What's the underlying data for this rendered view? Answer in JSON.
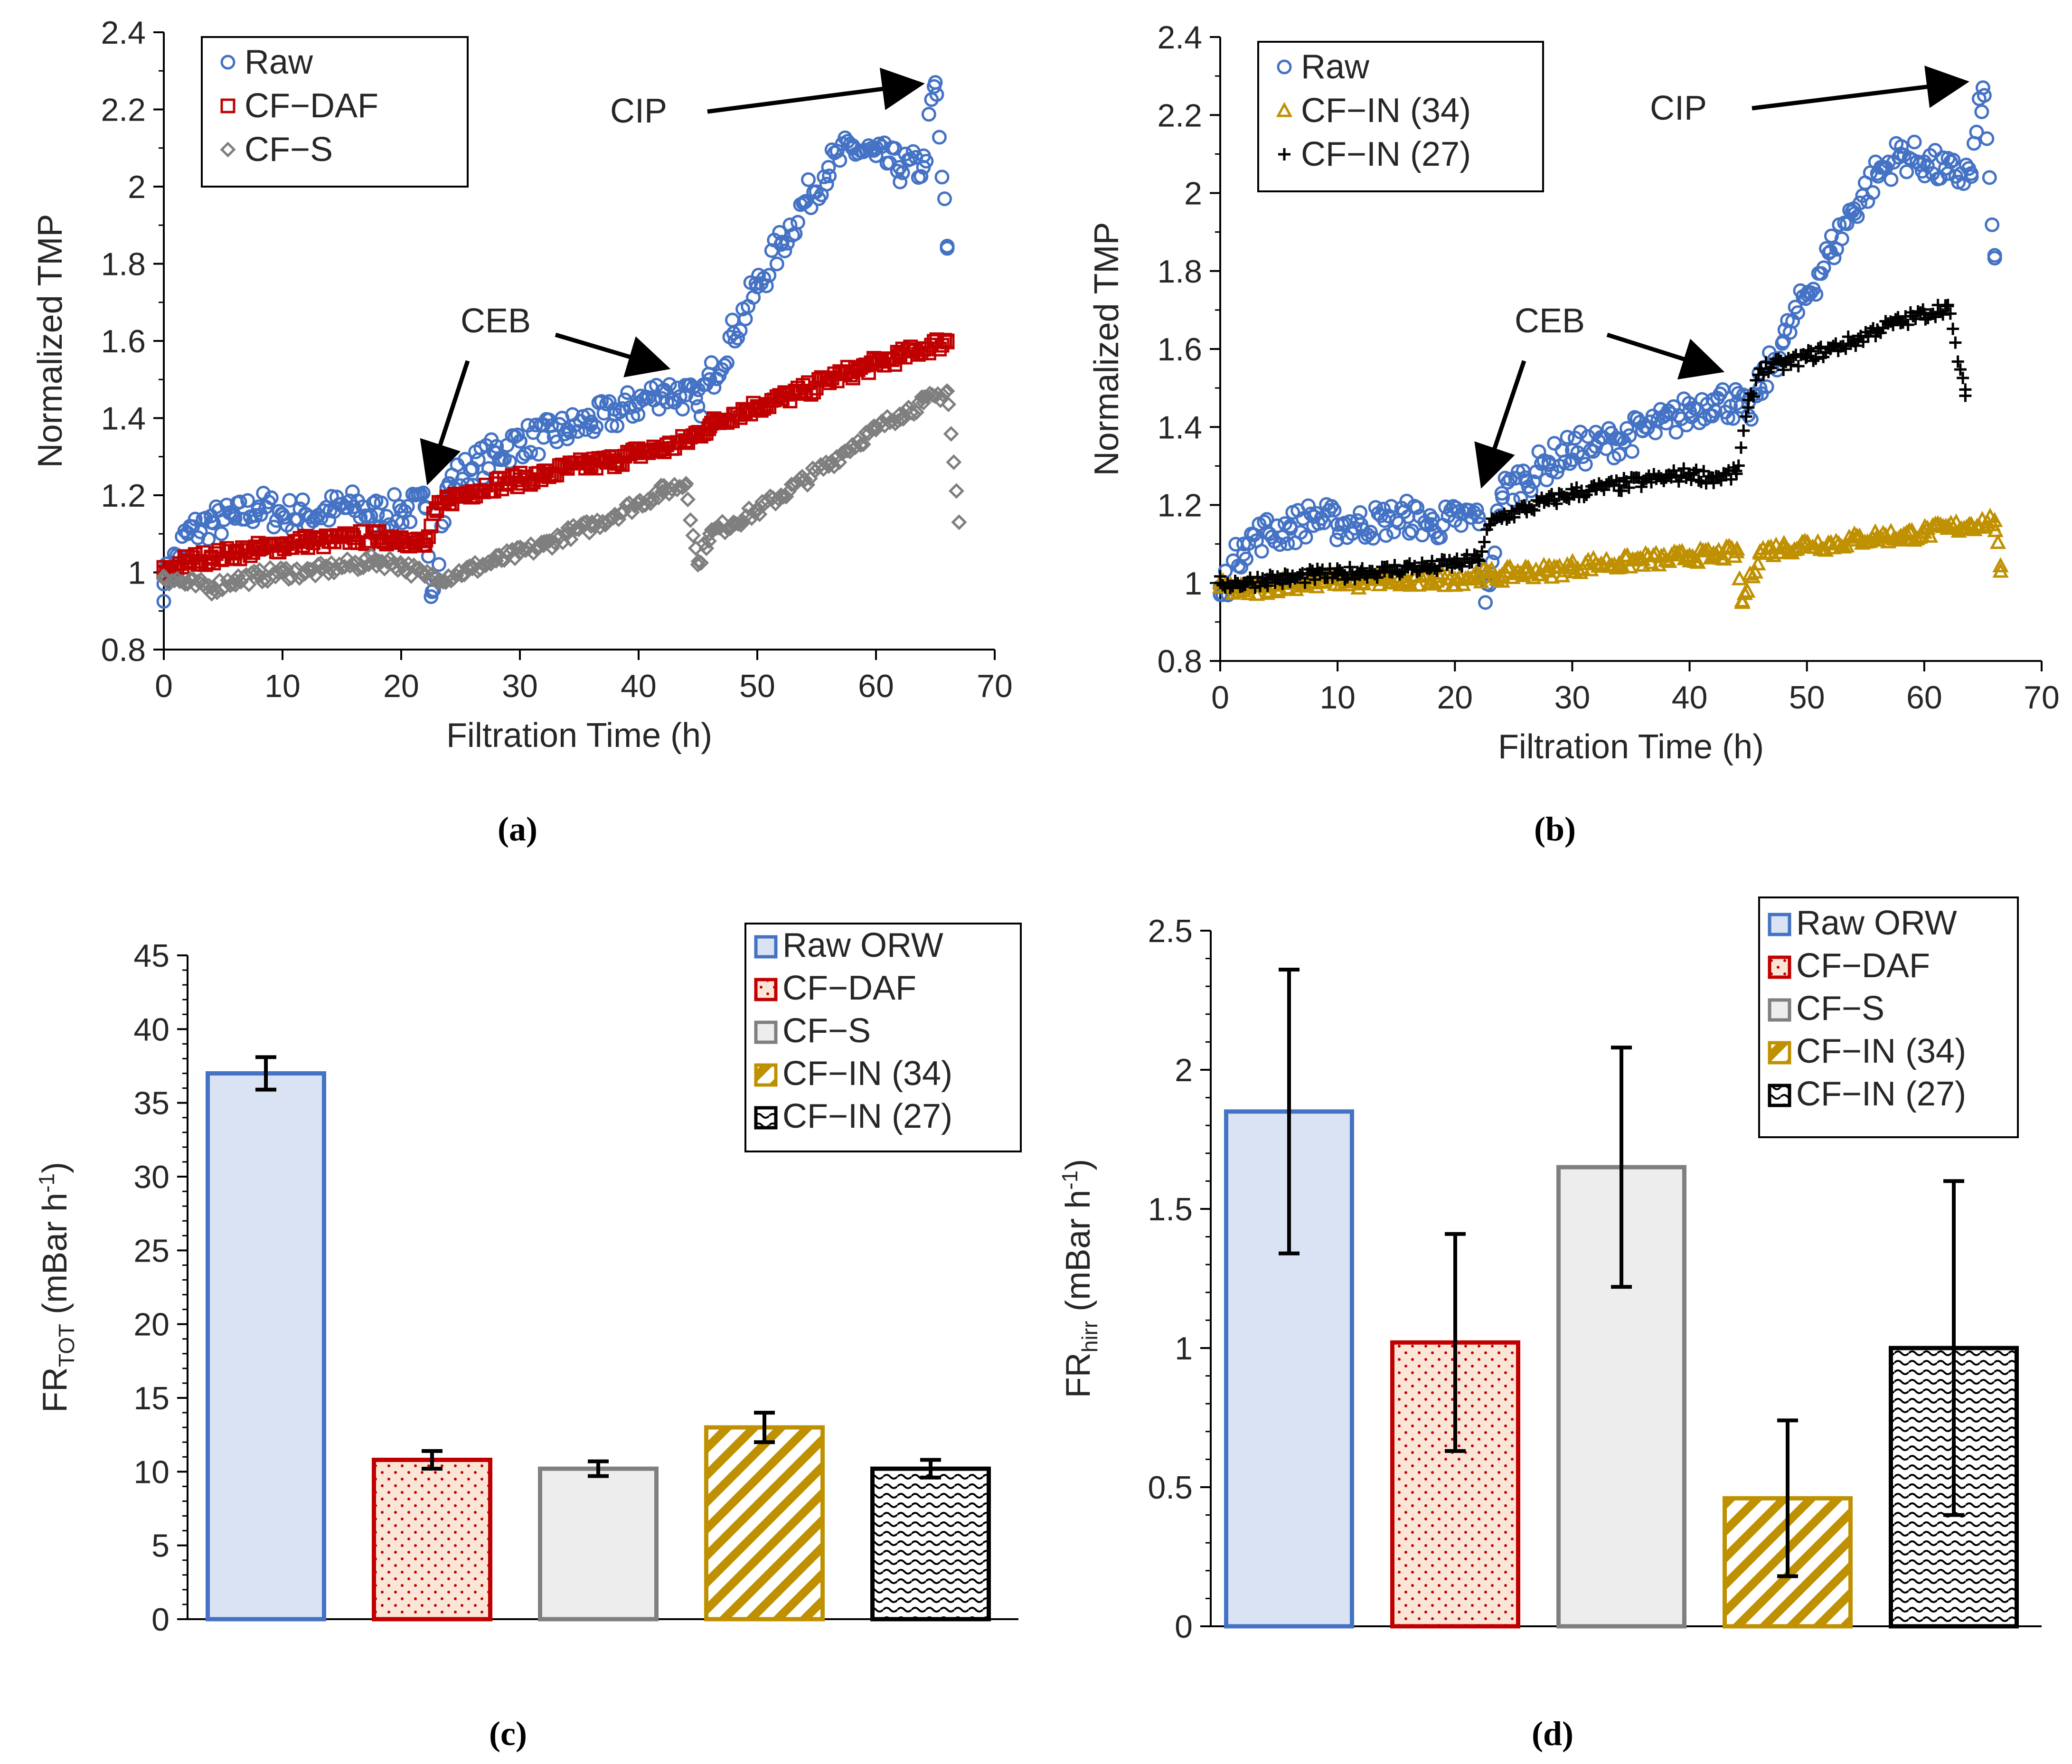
{
  "chart_data": [
    {
      "id": "a",
      "type": "scatter",
      "panel_label": "(a)",
      "xlabel": "Filtration Time (h)",
      "ylabel": "Normalized TMP",
      "xlim": [
        0,
        70
      ],
      "ylim": [
        0.8,
        2.4
      ],
      "xticks": [
        0,
        10,
        20,
        30,
        40,
        50,
        60,
        70
      ],
      "yticks": [
        0.8,
        1,
        1.2,
        1.4,
        1.6,
        1.8,
        2,
        2.2,
        2.4
      ],
      "ytick_labels": [
        "0.8",
        "1",
        "1.2",
        "1.4",
        "1.6",
        "1.8",
        "2",
        "2.2",
        "2.4"
      ],
      "legend_position": "top-left",
      "series": [
        {
          "name": "Raw",
          "marker": "circle",
          "color": "#4472C4",
          "x": [
            0,
            2,
            4,
            6,
            8,
            10,
            12,
            14,
            16,
            18,
            20,
            22,
            22.6,
            24,
            26,
            28,
            30,
            32,
            34,
            36,
            38,
            40,
            42,
            44,
            45,
            46,
            48,
            50,
            52,
            54,
            56,
            58,
            60,
            62,
            64,
            65,
            66
          ],
          "y": [
            0.97,
            1.1,
            1.13,
            1.14,
            1.17,
            1.15,
            1.15,
            1.16,
            1.17,
            1.15,
            1.16,
            1.17,
            0.95,
            1.23,
            1.27,
            1.31,
            1.34,
            1.35,
            1.37,
            1.39,
            1.41,
            1.44,
            1.47,
            1.46,
            1.43,
            1.5,
            1.62,
            1.74,
            1.85,
            1.96,
            2.05,
            2.1,
            2.08,
            2.05,
            2.05,
            2.27,
            1.84
          ]
        },
        {
          "name": "CF−DAF",
          "marker": "square",
          "color": "#C00000",
          "x": [
            0,
            2,
            4,
            6,
            8,
            10,
            12,
            14,
            16,
            18,
            20,
            22,
            23,
            24,
            26,
            28,
            30,
            32,
            34,
            36,
            38,
            40,
            42,
            44,
            45,
            46,
            48,
            50,
            52,
            54,
            56,
            58,
            60,
            62,
            64,
            66
          ],
          "y": [
            1.0,
            1.03,
            1.04,
            1.05,
            1.06,
            1.07,
            1.08,
            1.08,
            1.09,
            1.09,
            1.09,
            1.07,
            1.16,
            1.19,
            1.21,
            1.23,
            1.24,
            1.25,
            1.27,
            1.28,
            1.29,
            1.31,
            1.32,
            1.34,
            1.36,
            1.38,
            1.41,
            1.43,
            1.45,
            1.47,
            1.5,
            1.52,
            1.54,
            1.56,
            1.58,
            1.6
          ]
        },
        {
          "name": "CF−S",
          "marker": "diamond",
          "color": "#7F7F7F",
          "x": [
            0,
            2,
            4,
            6,
            8,
            10,
            12,
            14,
            16,
            18,
            20,
            22,
            24,
            26,
            28,
            30,
            32,
            34,
            36,
            38,
            40,
            42,
            44,
            45,
            46,
            48,
            50,
            52,
            54,
            56,
            58,
            60,
            62,
            64,
            66,
            67
          ],
          "y": [
            0.99,
            0.97,
            0.96,
            0.98,
            0.99,
            1.0,
            1.0,
            1.01,
            1.02,
            1.03,
            1.02,
            0.99,
            0.99,
            1.01,
            1.03,
            1.05,
            1.07,
            1.1,
            1.12,
            1.15,
            1.18,
            1.21,
            1.23,
            1.02,
            1.1,
            1.13,
            1.16,
            1.2,
            1.24,
            1.28,
            1.33,
            1.37,
            1.41,
            1.44,
            1.47,
            1.13
          ]
        }
      ],
      "annotations": [
        {
          "text": "CIP",
          "points_to": [
            65,
            2.25
          ]
        },
        {
          "text": "CEB",
          "points_to": [
            [
              22.5,
              1.2
            ],
            [
              43,
              1.51
            ]
          ]
        }
      ]
    },
    {
      "id": "b",
      "type": "scatter",
      "panel_label": "(b)",
      "xlabel": "Filtration Time (h)",
      "ylabel": "Normalized TMP",
      "xlim": [
        0,
        70
      ],
      "ylim": [
        0.8,
        2.4
      ],
      "xticks": [
        0,
        10,
        20,
        30,
        40,
        50,
        60,
        70
      ],
      "yticks": [
        0.8,
        1,
        1.2,
        1.4,
        1.6,
        1.8,
        2,
        2.2,
        2.4
      ],
      "ytick_labels": [
        "0.8",
        "1",
        "1.2",
        "1.4",
        "1.6",
        "1.8",
        "2",
        "2.2",
        "2.4"
      ],
      "legend_position": "top-left",
      "series": [
        {
          "name": "Raw",
          "marker": "circle",
          "color": "#4472C4",
          "x": [
            0,
            2,
            4,
            6,
            8,
            10,
            12,
            14,
            16,
            18,
            20,
            22,
            22.6,
            24,
            26,
            28,
            30,
            32,
            34,
            36,
            38,
            40,
            42,
            44,
            45,
            46,
            48,
            50,
            52,
            54,
            56,
            58,
            60,
            62,
            64,
            65,
            66
          ],
          "y": [
            0.97,
            1.1,
            1.13,
            1.14,
            1.17,
            1.15,
            1.15,
            1.16,
            1.17,
            1.15,
            1.16,
            1.17,
            0.95,
            1.23,
            1.27,
            1.31,
            1.34,
            1.35,
            1.37,
            1.39,
            1.41,
            1.44,
            1.47,
            1.46,
            1.43,
            1.5,
            1.62,
            1.74,
            1.85,
            1.96,
            2.05,
            2.1,
            2.08,
            2.05,
            2.05,
            2.27,
            1.84
          ]
        },
        {
          "name": "CF−IN (34)",
          "marker": "triangle",
          "color": "#BF9000",
          "x": [
            0,
            2,
            4,
            6,
            8,
            10,
            12,
            14,
            16,
            18,
            20,
            22,
            24,
            26,
            28,
            30,
            32,
            34,
            36,
            38,
            40,
            42,
            44,
            44.5,
            46,
            48,
            50,
            52,
            54,
            56,
            58,
            60,
            62,
            64,
            66,
            66.5
          ],
          "y": [
            0.99,
            0.98,
            0.99,
            1.0,
            1.0,
            1.01,
            1.0,
            1.01,
            1.0,
            1.01,
            1.01,
            1.02,
            1.02,
            1.03,
            1.03,
            1.04,
            1.05,
            1.05,
            1.06,
            1.06,
            1.07,
            1.07,
            1.08,
            0.95,
            1.08,
            1.09,
            1.1,
            1.1,
            1.11,
            1.12,
            1.12,
            1.13,
            1.14,
            1.15,
            1.16,
            1.03
          ]
        },
        {
          "name": "CF−IN (27)",
          "marker": "plus",
          "color": "#000000",
          "x": [
            0,
            2,
            4,
            6,
            8,
            10,
            12,
            14,
            16,
            18,
            20,
            22,
            23,
            24,
            26,
            28,
            30,
            32,
            34,
            36,
            38,
            40,
            42,
            44,
            45,
            46,
            48,
            50,
            52,
            54,
            56,
            58,
            60,
            62,
            63.5
          ],
          "y": [
            1.0,
            1.0,
            1.01,
            1.01,
            1.02,
            1.02,
            1.03,
            1.03,
            1.04,
            1.04,
            1.05,
            1.06,
            1.15,
            1.17,
            1.19,
            1.21,
            1.23,
            1.24,
            1.25,
            1.26,
            1.27,
            1.28,
            1.27,
            1.28,
            1.45,
            1.55,
            1.56,
            1.58,
            1.6,
            1.62,
            1.65,
            1.67,
            1.69,
            1.71,
            1.48
          ]
        }
      ],
      "annotations": [
        {
          "text": "CIP",
          "points_to": [
            65,
            2.25
          ]
        },
        {
          "text": "CEB",
          "points_to": [
            [
              22.5,
              1.2
            ],
            [
              43,
              1.51
            ]
          ]
        }
      ]
    },
    {
      "id": "c",
      "type": "bar",
      "panel_label": "(c)",
      "ylabel_main": "FR",
      "ylabel_sub": "TOT",
      "ylabel_rest": " (mBar h",
      "ylabel_sup": "-1",
      "ylabel_end": ")",
      "ylim": [
        0,
        45
      ],
      "yticks": [
        0,
        5,
        10,
        15,
        20,
        25,
        30,
        35,
        40,
        45
      ],
      "ytick_labels": [
        "0",
        "5",
        "10",
        "15",
        "20",
        "25",
        "30",
        "35",
        "40",
        "45"
      ],
      "categories": [
        "Raw ORW",
        "CF−DAF",
        "CF−S",
        "CF−IN (34)",
        "CF−IN (27)"
      ],
      "values": [
        37,
        10.8,
        10.2,
        13,
        10.2
      ],
      "errors": [
        1.1,
        0.6,
        0.5,
        1.0,
        0.6
      ],
      "legend_position": "top-right"
    },
    {
      "id": "d",
      "type": "bar",
      "panel_label": "(d)",
      "ylabel_main": "FR",
      "ylabel_sub": "hirr",
      "ylabel_rest": " (mBar h",
      "ylabel_sup": "-1",
      "ylabel_end": ")",
      "ylim": [
        0,
        2.5
      ],
      "yticks": [
        0,
        0.5,
        1,
        1.5,
        2,
        2.5
      ],
      "ytick_labels": [
        "0",
        "0.5",
        "1",
        "1.5",
        "2",
        "2.5"
      ],
      "categories": [
        "Raw ORW",
        "CF−DAF",
        "CF−S",
        "CF−IN (34)",
        "CF−IN (27)"
      ],
      "values": [
        1.85,
        1.02,
        1.65,
        0.46,
        1.0
      ],
      "errors": [
        0.51,
        0.39,
        0.43,
        0.28,
        0.6
      ],
      "legend_position": "top-right"
    }
  ],
  "bar_styles": [
    {
      "stroke": "#4472C4",
      "fill": "#DAE3F3",
      "pattern": "solid"
    },
    {
      "stroke": "#C00000",
      "fill": "#FBE5D6",
      "pattern": "dots"
    },
    {
      "stroke": "#7F7F7F",
      "fill": "#EDEDED",
      "pattern": "solid"
    },
    {
      "stroke": "#BF9000",
      "fill": "#FFFFFF",
      "pattern": "diagonal"
    },
    {
      "stroke": "#000000",
      "fill": "#FFFFFF",
      "pattern": "wave"
    }
  ]
}
